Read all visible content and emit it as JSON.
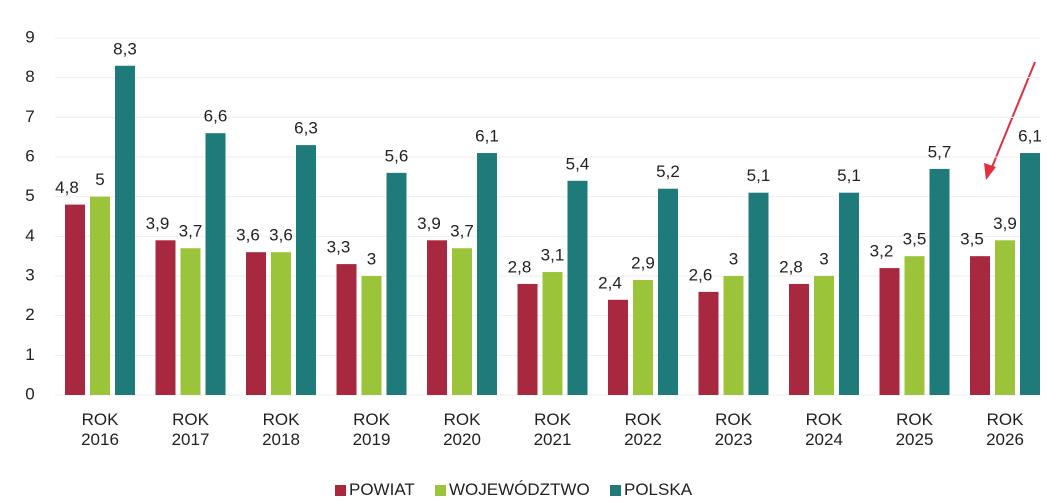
{
  "chart_data": {
    "type": "bar",
    "categories": [
      "ROK 2016",
      "ROK 2017",
      "ROK 2018",
      "ROK 2019",
      "ROK 2020",
      "ROK 2021",
      "ROK 2022",
      "ROK 2023",
      "ROK 2024",
      "ROK 2025",
      "ROK 2026"
    ],
    "series": [
      {
        "name": "POWIAT",
        "color": "#a8283f",
        "values": [
          4.8,
          3.9,
          3.6,
          3.3,
          3.9,
          2.8,
          2.4,
          2.6,
          2.8,
          3.2,
          3.5
        ],
        "value_labels": [
          "4,8",
          "3,9",
          "3,6",
          "3,3",
          "3,9",
          "2,8",
          "2,4",
          "2,6",
          "2,8",
          "3,2",
          "3,5"
        ]
      },
      {
        "name": "WOJEWÓDZTWO",
        "color": "#9cc43a",
        "values": [
          5,
          3.7,
          3.6,
          3,
          3.7,
          3.1,
          2.9,
          3,
          3,
          3.5,
          3.9
        ],
        "value_labels": [
          "5",
          "3,7",
          "3,6",
          "3",
          "3,7",
          "3,1",
          "2,9",
          "3",
          "3",
          "3,5",
          "3,9"
        ]
      },
      {
        "name": "POLSKA",
        "color": "#1f7a7a",
        "values": [
          8.3,
          6.6,
          6.3,
          5.6,
          6.1,
          5.4,
          5.2,
          5.1,
          5.1,
          5.7,
          6.1
        ],
        "value_labels": [
          "8,3",
          "6,6",
          "6,3",
          "5,6",
          "6,1",
          "5,4",
          "5,2",
          "5,1",
          "5,1",
          "5,7",
          "6,1"
        ]
      }
    ],
    "ylim": [
      0,
      9
    ],
    "yticks": [
      0,
      1,
      2,
      3,
      4,
      5,
      6,
      7,
      8,
      9
    ],
    "grid": true
  }
}
